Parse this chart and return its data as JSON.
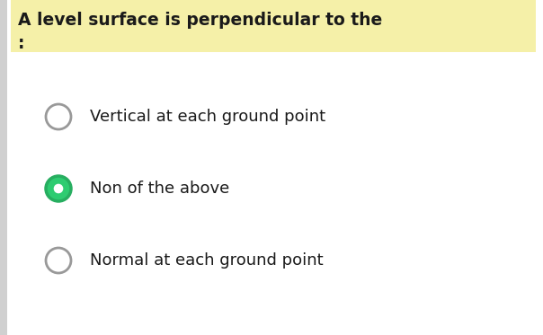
{
  "title_line1": "A level surface is perpendicular to the",
  "title_line2": ":",
  "title_highlight_color": "#f5f0a8",
  "background_color": "#f2f2f2",
  "panel_color": "#ffffff",
  "options": [
    {
      "text": "Vertical at each ground point",
      "selected": false
    },
    {
      "text": "Non of the above",
      "selected": true
    },
    {
      "text": "Normal at each ground point",
      "selected": false
    }
  ],
  "radio_unselected_edge": "#999999",
  "radio_unselected_fill": "#ffffff",
  "radio_selected_fill": "#2ecc71",
  "radio_selected_edge": "#27ae60",
  "radio_inner_fill": "#ffffff",
  "text_color": "#1a1a1a",
  "title_font_size": 13.5,
  "option_font_size": 13
}
